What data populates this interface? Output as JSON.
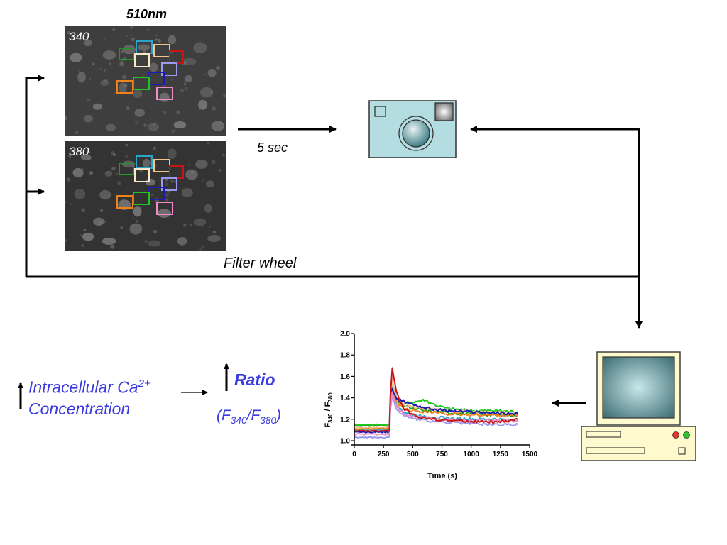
{
  "diagram": {
    "wavelength_label": "510nm",
    "image_340_label": "340",
    "image_380_label": "380",
    "interval_label": "5 sec",
    "filter_wheel_label": "Filter wheel",
    "calcium": {
      "line1_text": "Intracellular Ca",
      "line1_sup": "2+",
      "line2_text": "Concentration"
    },
    "ratio_label": "Ratio",
    "formula": {
      "open": "(F",
      "sub1": "340",
      "slash": "/F",
      "sub2": "380",
      "close": ")"
    }
  },
  "colors": {
    "text_blue": "#3a3adf",
    "camera_fill": "#b4dde1",
    "computer_fill": "#fffacd",
    "roi": [
      "#1e9a1e",
      "#2aa6c8",
      "#f5c28c",
      "#c81414",
      "#f8e8c8",
      "#9a9af0",
      "#1a1ab4",
      "#1ec81e",
      "#f0821e",
      "#f08cc8"
    ]
  },
  "chart_data": {
    "type": "line",
    "xlabel": "Time (s)",
    "ylabel": "F340 / F380",
    "ylabel_parts": {
      "F1": "F",
      "s1": "340",
      "mid": " / F",
      "s2": "380"
    },
    "xlim": [
      0,
      1500
    ],
    "ylim": [
      1.0,
      2.0
    ],
    "xticks": [
      "0",
      "250",
      "500",
      "750",
      "1000",
      "1250",
      "1500"
    ],
    "yticks": [
      "1.0",
      "1.2",
      "1.4",
      "1.6",
      "1.8",
      "2.0"
    ],
    "grid": false,
    "x": [
      0,
      300,
      310,
      325,
      360,
      420,
      500,
      600,
      700,
      800,
      1000,
      1200,
      1400
    ],
    "series": [
      {
        "color": "#1e9a1e",
        "values": [
          1.14,
          1.14,
          1.42,
          1.55,
          1.4,
          1.33,
          1.3,
          1.28,
          1.27,
          1.26,
          1.25,
          1.24,
          1.24
        ]
      },
      {
        "color": "#1ec81e",
        "values": [
          1.15,
          1.15,
          1.4,
          1.5,
          1.38,
          1.34,
          1.36,
          1.38,
          1.33,
          1.3,
          1.28,
          1.28,
          1.27
        ]
      },
      {
        "color": "#2aa6c8",
        "values": [
          1.1,
          1.1,
          1.38,
          1.52,
          1.34,
          1.27,
          1.24,
          1.23,
          1.22,
          1.21,
          1.2,
          1.2,
          1.19
        ]
      },
      {
        "color": "#f5c28c",
        "values": [
          1.12,
          1.12,
          1.4,
          1.55,
          1.4,
          1.34,
          1.31,
          1.3,
          1.29,
          1.28,
          1.27,
          1.26,
          1.26
        ]
      },
      {
        "color": "#f0821e",
        "values": [
          1.11,
          1.11,
          1.38,
          1.48,
          1.36,
          1.3,
          1.28,
          1.27,
          1.26,
          1.25,
          1.24,
          1.24,
          1.23
        ]
      },
      {
        "color": "#1a1ab4",
        "values": [
          1.08,
          1.08,
          1.35,
          1.48,
          1.38,
          1.37,
          1.34,
          1.31,
          1.29,
          1.28,
          1.27,
          1.26,
          1.25
        ]
      },
      {
        "color": "#9a9af0",
        "values": [
          1.03,
          1.03,
          1.3,
          1.42,
          1.3,
          1.24,
          1.21,
          1.19,
          1.18,
          1.17,
          1.16,
          1.15,
          1.15
        ]
      },
      {
        "color": "#f08cc8",
        "values": [
          1.06,
          1.06,
          1.32,
          1.45,
          1.32,
          1.26,
          1.23,
          1.22,
          1.21,
          1.2,
          1.19,
          1.19,
          1.18
        ]
      },
      {
        "color": "#c81414",
        "values": [
          1.09,
          1.09,
          1.45,
          1.68,
          1.45,
          1.3,
          1.24,
          1.21,
          1.2,
          1.19,
          1.18,
          1.17,
          1.2
        ]
      }
    ]
  }
}
